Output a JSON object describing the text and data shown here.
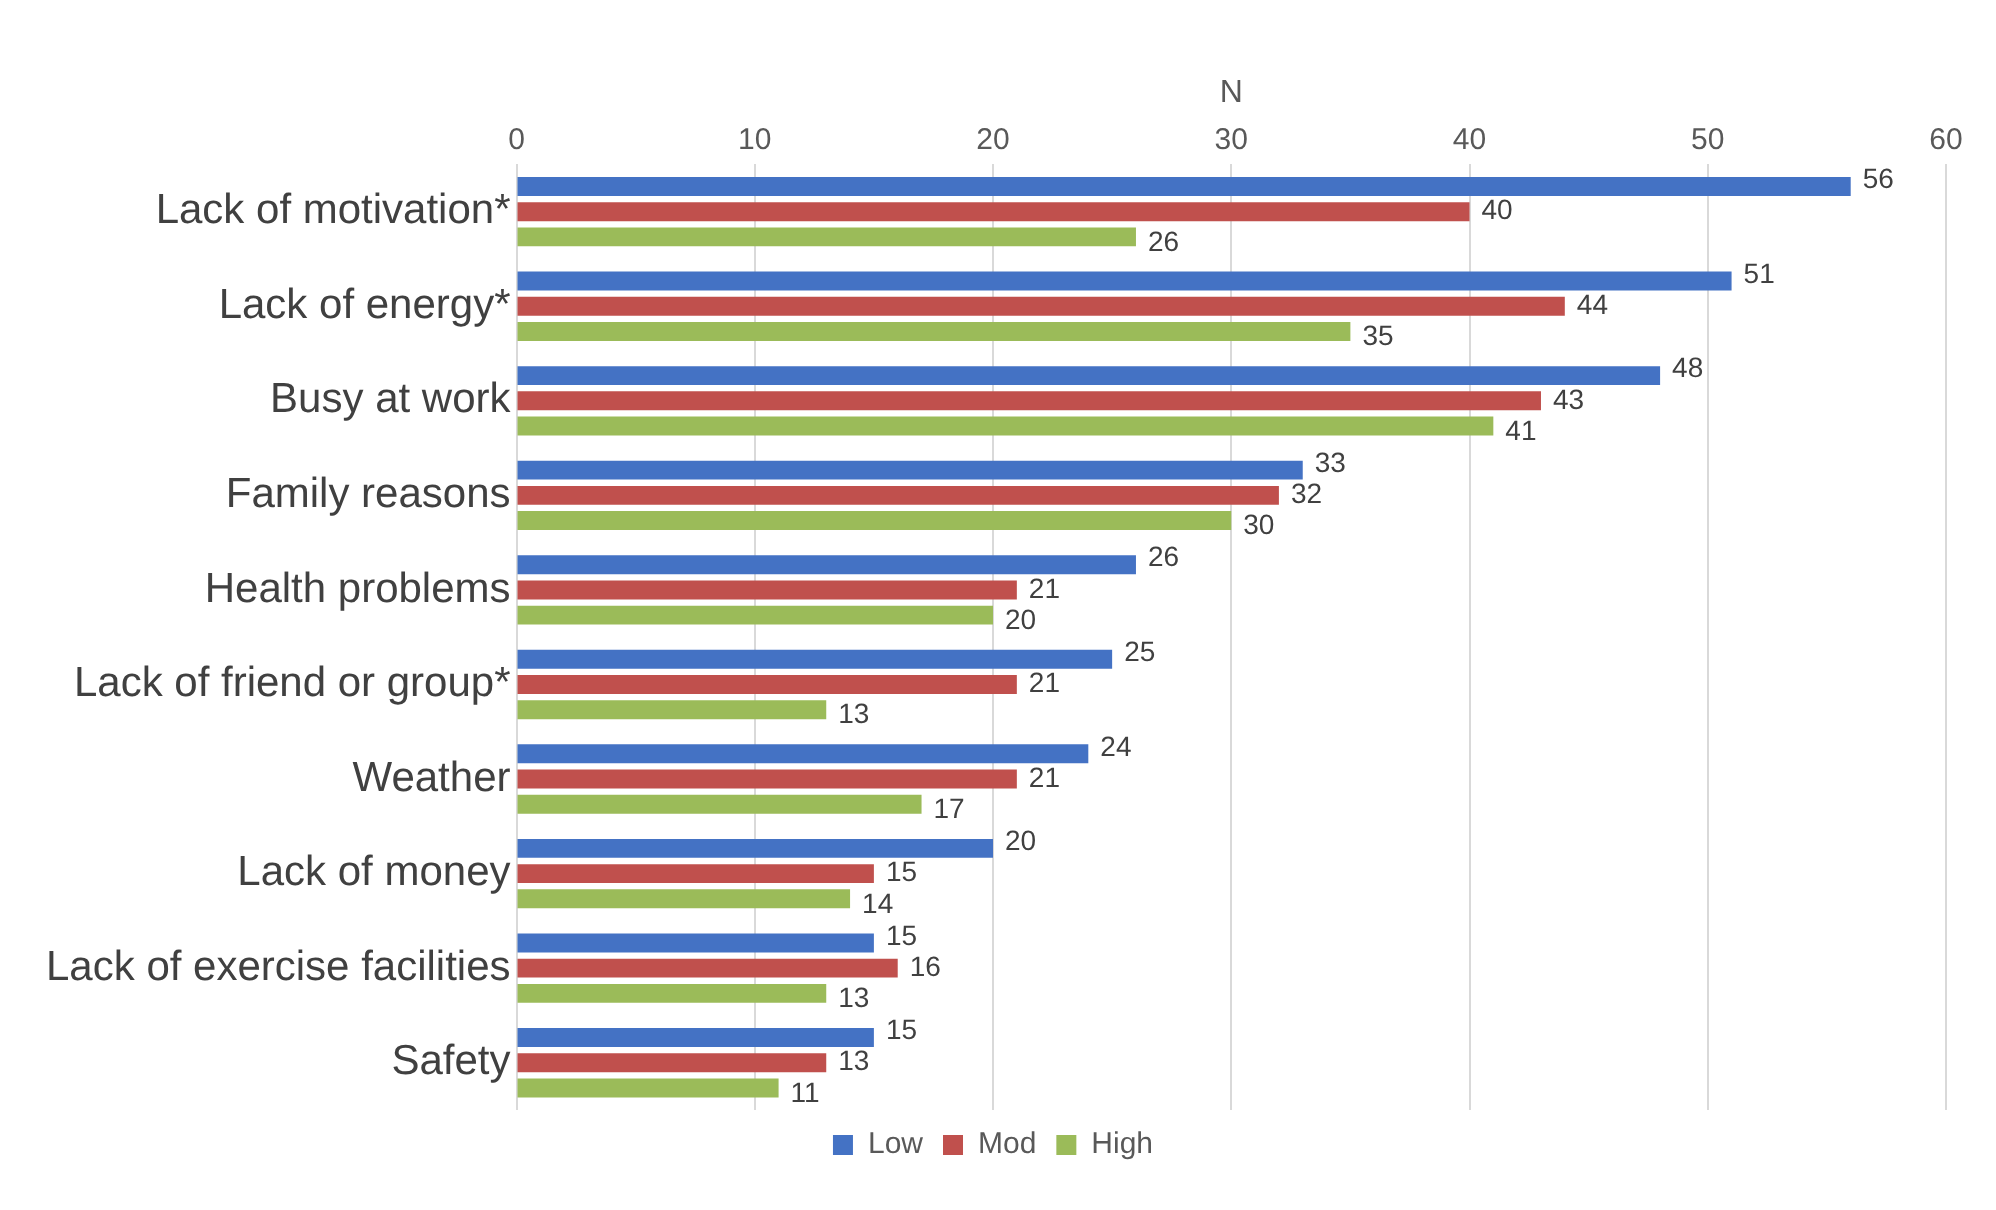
{
  "chart_data": {
    "type": "bar",
    "orientation": "horizontal",
    "xlabel": "N",
    "categories": [
      "Lack of motivation*",
      "Lack of energy*",
      "Busy at work",
      "Family reasons",
      "Health problems",
      "Lack of friend or group*",
      "Weather",
      "Lack of money",
      "Lack of exercise facilities",
      "Safety"
    ],
    "series": [
      {
        "name": "Low",
        "color": "#4472c4",
        "values": [
          56,
          51,
          48,
          33,
          26,
          25,
          24,
          20,
          15,
          15
        ]
      },
      {
        "name": "Mod",
        "color": "#c0504d",
        "values": [
          40,
          44,
          43,
          32,
          21,
          21,
          21,
          15,
          16,
          13
        ]
      },
      {
        "name": "High",
        "color": "#9bbb59",
        "values": [
          26,
          35,
          41,
          30,
          20,
          13,
          17,
          14,
          13,
          11
        ]
      }
    ],
    "xlim": [
      0,
      60
    ],
    "xticks": [
      0,
      10,
      20,
      30,
      40,
      50,
      60
    ],
    "grid": "x",
    "legend": "bottom",
    "data_labels": true
  }
}
